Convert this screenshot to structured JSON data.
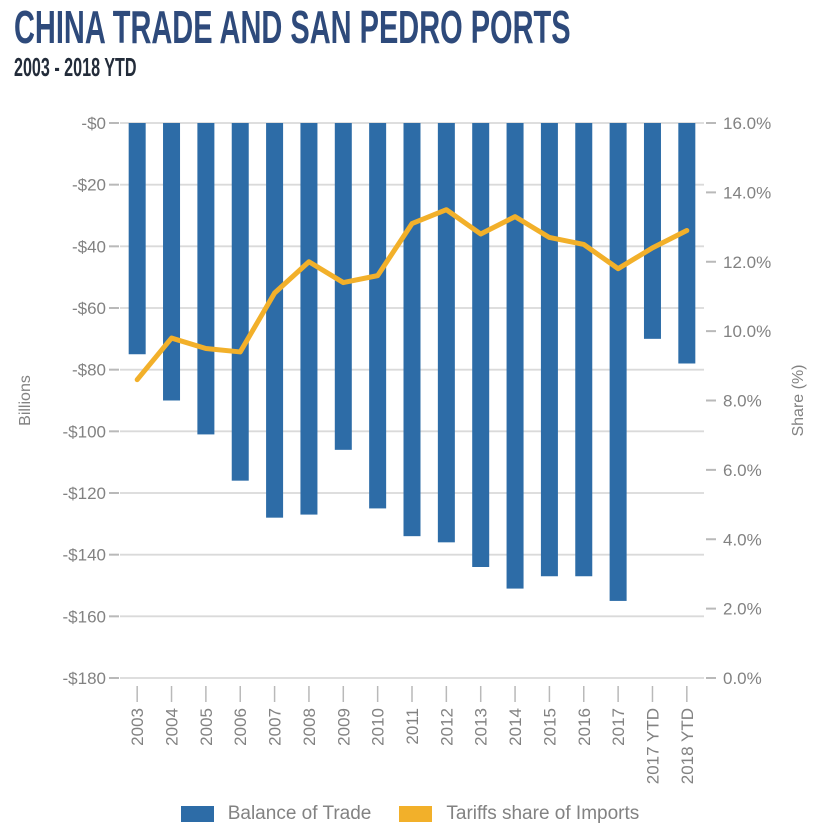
{
  "header": {
    "title": "CHINA TRADE AND SAN PEDRO PORTS",
    "subtitle": "2003 - 2018 YTD",
    "title_color": "#2e4a7b",
    "subtitle_color": "#232c3a"
  },
  "chart_data": {
    "type": "combo",
    "title": "CHINA TRADE AND SAN PEDRO PORTS",
    "subtitle": "2003 - 2018 YTD",
    "categories": [
      "2003",
      "2004",
      "2005",
      "2006",
      "2007",
      "2008",
      "2009",
      "2010",
      "2011",
      "2012",
      "2013",
      "2014",
      "2015",
      "2016",
      "2017",
      "2017 YTD",
      "2018 YTD"
    ],
    "series": [
      {
        "name": "Balance of Trade",
        "type": "bar",
        "axis": "left",
        "units": "billions USD",
        "color": "#2d6ca7",
        "values": [
          -75,
          -90,
          -101,
          -116,
          -128,
          -127,
          -106,
          -125,
          -134,
          -136,
          -144,
          -151,
          -147,
          -147,
          -155,
          -70,
          -78
        ]
      },
      {
        "name": "Tariffs share of Imports",
        "type": "line",
        "axis": "right",
        "units": "percent",
        "color": "#f2b02a",
        "values": [
          8.6,
          9.8,
          9.5,
          9.4,
          11.1,
          12.0,
          11.4,
          11.6,
          13.1,
          13.5,
          12.8,
          13.3,
          12.7,
          12.5,
          11.8,
          12.4,
          12.9
        ]
      }
    ],
    "left_axis": {
      "title": "Billions",
      "max": 0,
      "min": -180,
      "tick_labels": [
        "-$0",
        "-$20",
        "-$40",
        "-$60",
        "-$80",
        "-$100",
        "-$120",
        "-$140",
        "-$160",
        "-$180"
      ]
    },
    "right_axis": {
      "title": "Share (%)",
      "min": 0,
      "max": 16,
      "tick_labels": [
        "16.0%",
        "14.0%",
        "12.0%",
        "10.0%",
        "8.0%",
        "6.0%",
        "4.0%",
        "2.0%",
        "0.0%"
      ]
    },
    "grid": "horizontal gridlines at left-axis ticks",
    "legend_position": "bottom",
    "style": {
      "grid_color": "#dadada",
      "tick_color": "#b9b9b9",
      "axis_text_color": "#828282"
    }
  }
}
